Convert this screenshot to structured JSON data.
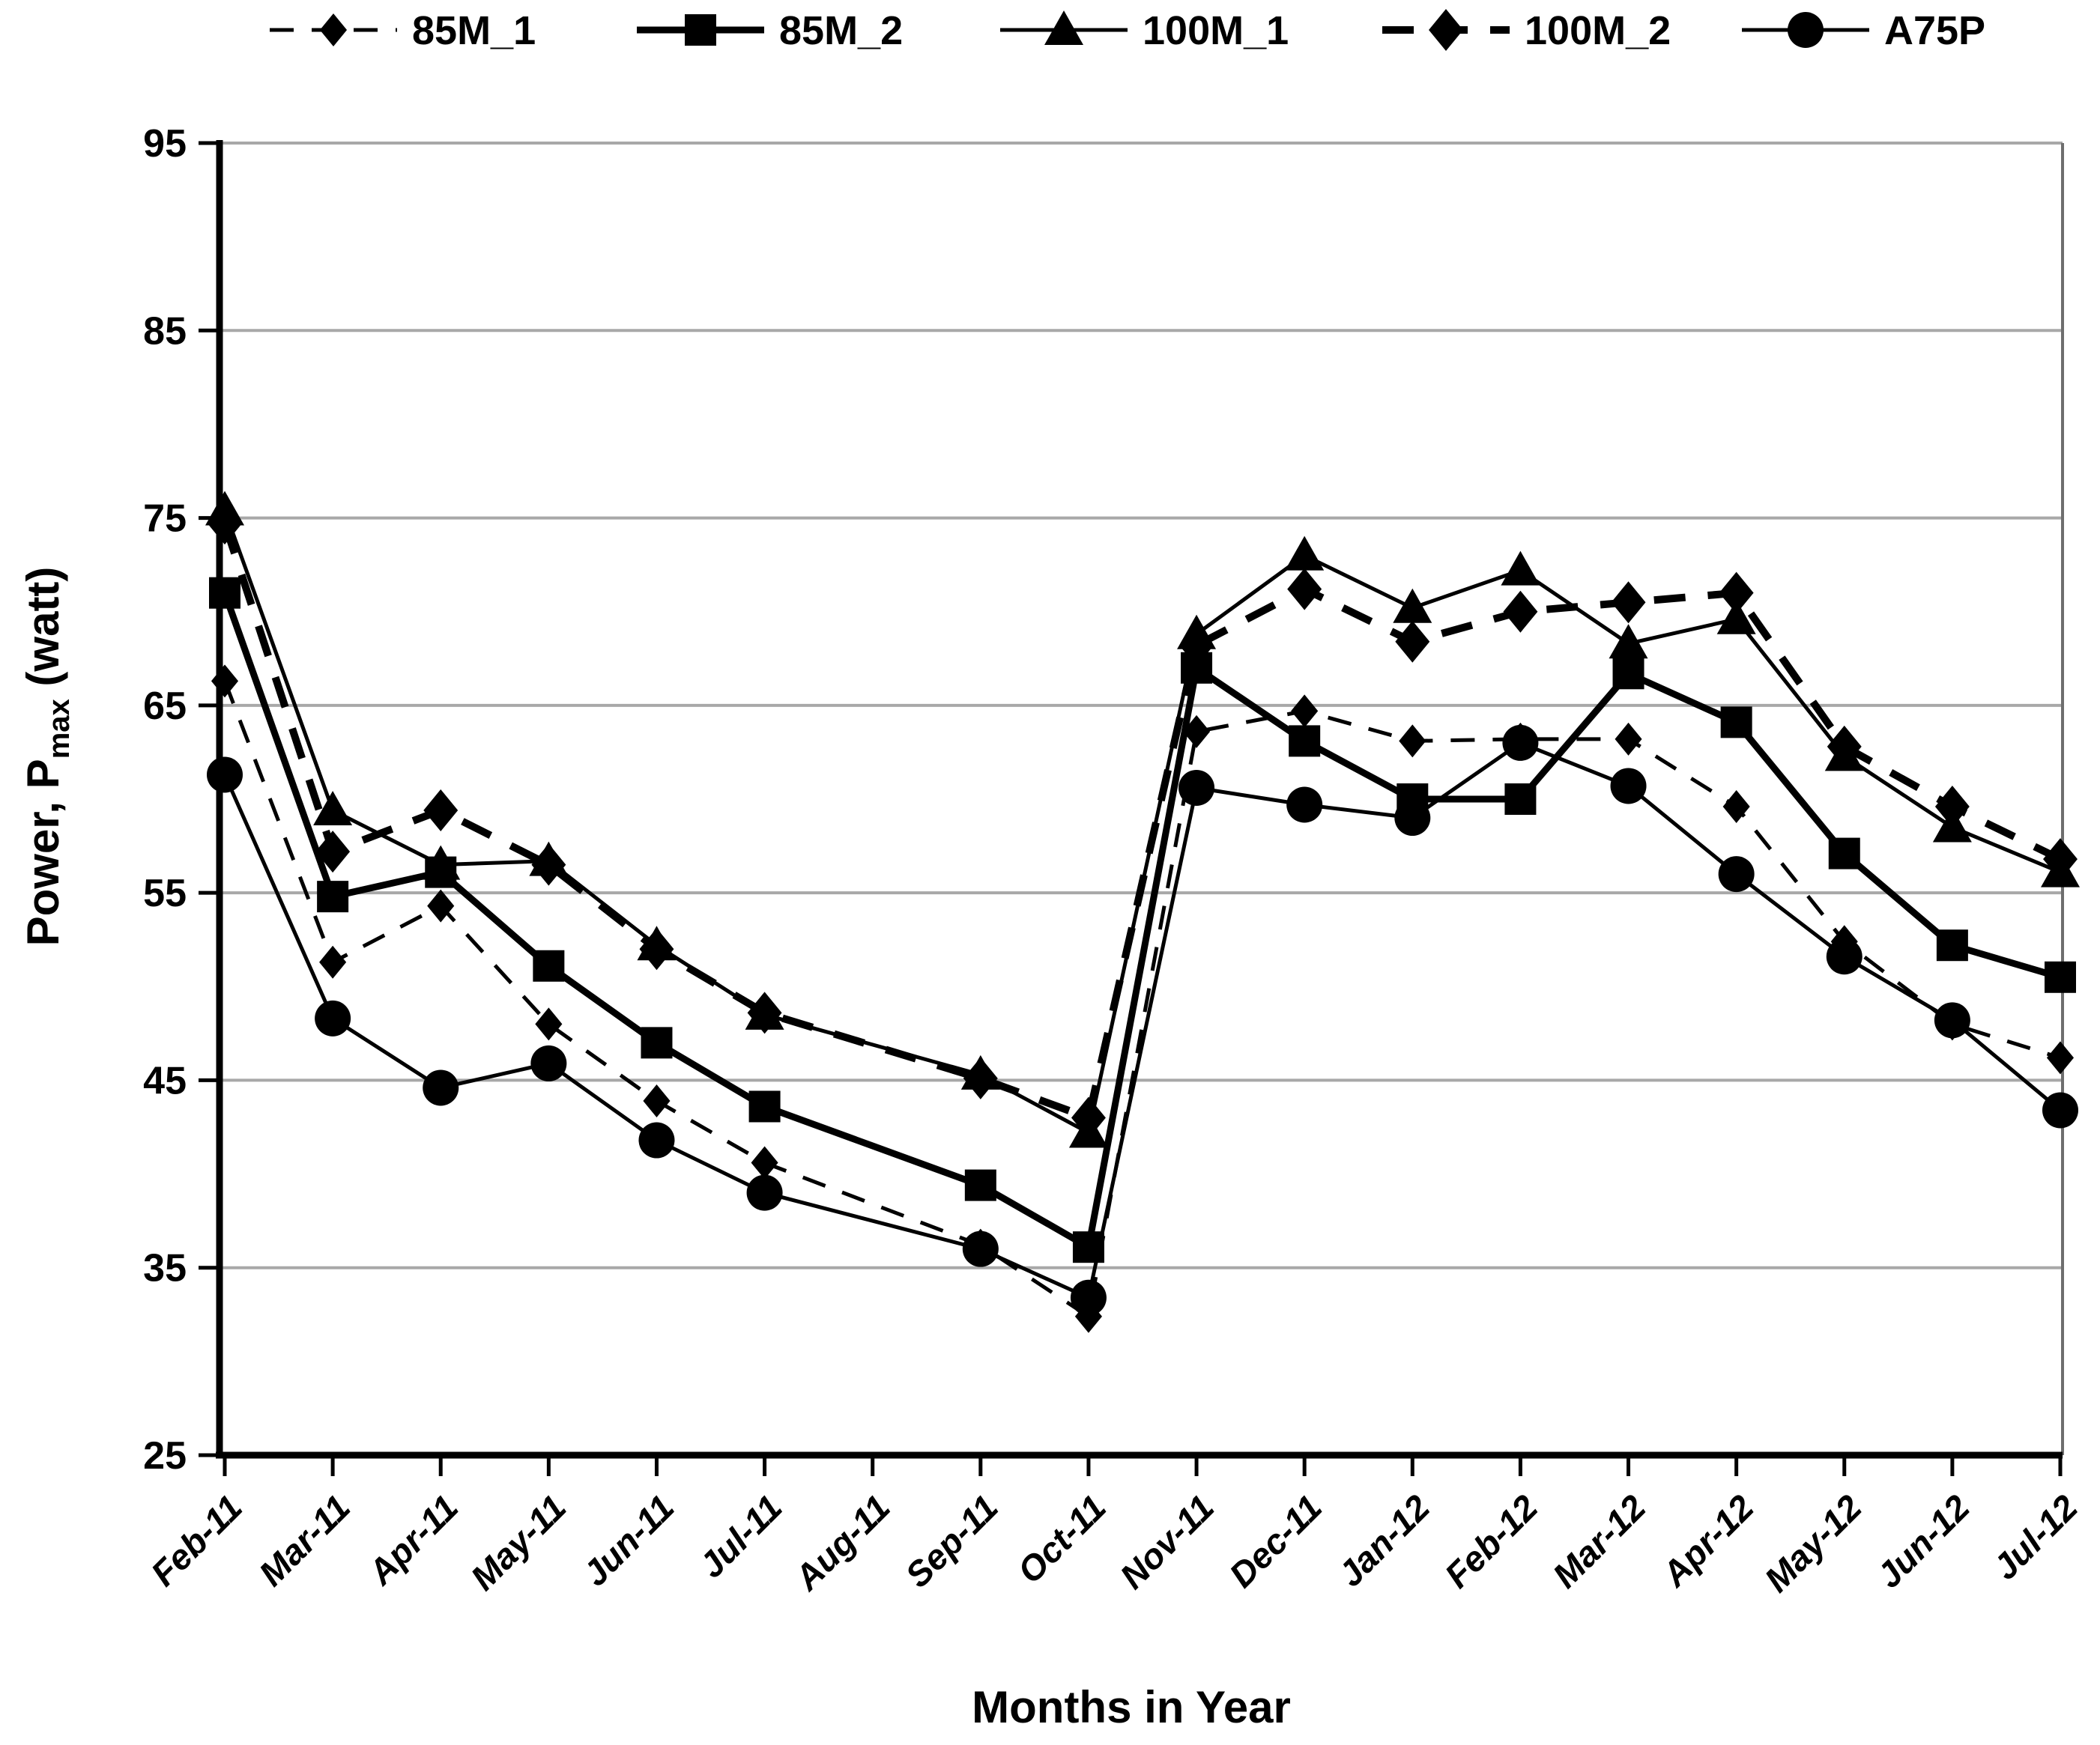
{
  "chart_data": {
    "type": "line",
    "title": "",
    "xlabel": "Months in Year",
    "ylabel_main": "Power, P",
    "ylabel_sub": "max",
    "ylabel_unit": " (watt)",
    "ylim": [
      25,
      95
    ],
    "yticks": [
      25,
      35,
      45,
      55,
      65,
      75,
      85,
      95
    ],
    "grid": "horizontal",
    "legend_position": "top",
    "colors": {
      "series": "#000000",
      "grid": "#a8a8a8",
      "axis": "#000000",
      "border": "#6e6e6e",
      "background": "#ffffff"
    },
    "categories": [
      "Feb-11",
      "Mar-11",
      "Apr-11",
      "May-11",
      "Jun-11",
      "Jul-11",
      "Aug-11",
      "Sep-11",
      "Oct-11",
      "Nov-11",
      "Dec-11",
      "Jan-12",
      "Feb-12",
      "Mar-12",
      "Apr-12",
      "May-12",
      "Jun-12",
      "Jul-12"
    ],
    "series": [
      {
        "name": "85M_1",
        "marker": "diamond",
        "line_style": "dashed",
        "weight": "thin",
        "values": [
          66.3,
          51.3,
          54.3,
          48.0,
          43.9,
          40.6,
          null,
          36.2,
          32.4,
          63.6,
          64.7,
          63.1,
          63.2,
          63.2,
          59.6,
          52.4,
          48.0,
          46.2
        ]
      },
      {
        "name": "85M_2",
        "marker": "square",
        "line_style": "solid",
        "weight": "thick",
        "values": [
          71.0,
          54.8,
          56.1,
          51.1,
          47.0,
          43.6,
          null,
          39.4,
          36.1,
          67.0,
          63.1,
          60.0,
          60.0,
          66.7,
          64.1,
          57.1,
          52.2,
          50.5
        ]
      },
      {
        "name": "100M_1",
        "marker": "triangle",
        "line_style": "solid",
        "weight": "thin",
        "values": [
          75.4,
          59.4,
          56.5,
          56.7,
          52.2,
          48.5,
          null,
          45.3,
          42.2,
          68.8,
          73.0,
          70.2,
          72.2,
          68.3,
          69.6,
          62.3,
          58.5,
          56.1
        ]
      },
      {
        "name": "100M_2",
        "marker": "diamond",
        "line_style": "dashed",
        "weight": "thick",
        "values": [
          74.7,
          57.2,
          59.4,
          56.5,
          52.0,
          48.6,
          null,
          45.1,
          43.0,
          68.2,
          71.2,
          68.4,
          70.0,
          70.5,
          71.0,
          62.8,
          59.6,
          56.8
        ]
      },
      {
        "name": "A75P",
        "marker": "circle",
        "line_style": "solid",
        "weight": "thin",
        "values": [
          61.3,
          48.3,
          44.6,
          45.9,
          41.8,
          39.0,
          null,
          36.0,
          33.4,
          60.6,
          59.7,
          59.0,
          63.0,
          60.7,
          56.0,
          51.6,
          48.2,
          43.4
        ]
      }
    ]
  }
}
